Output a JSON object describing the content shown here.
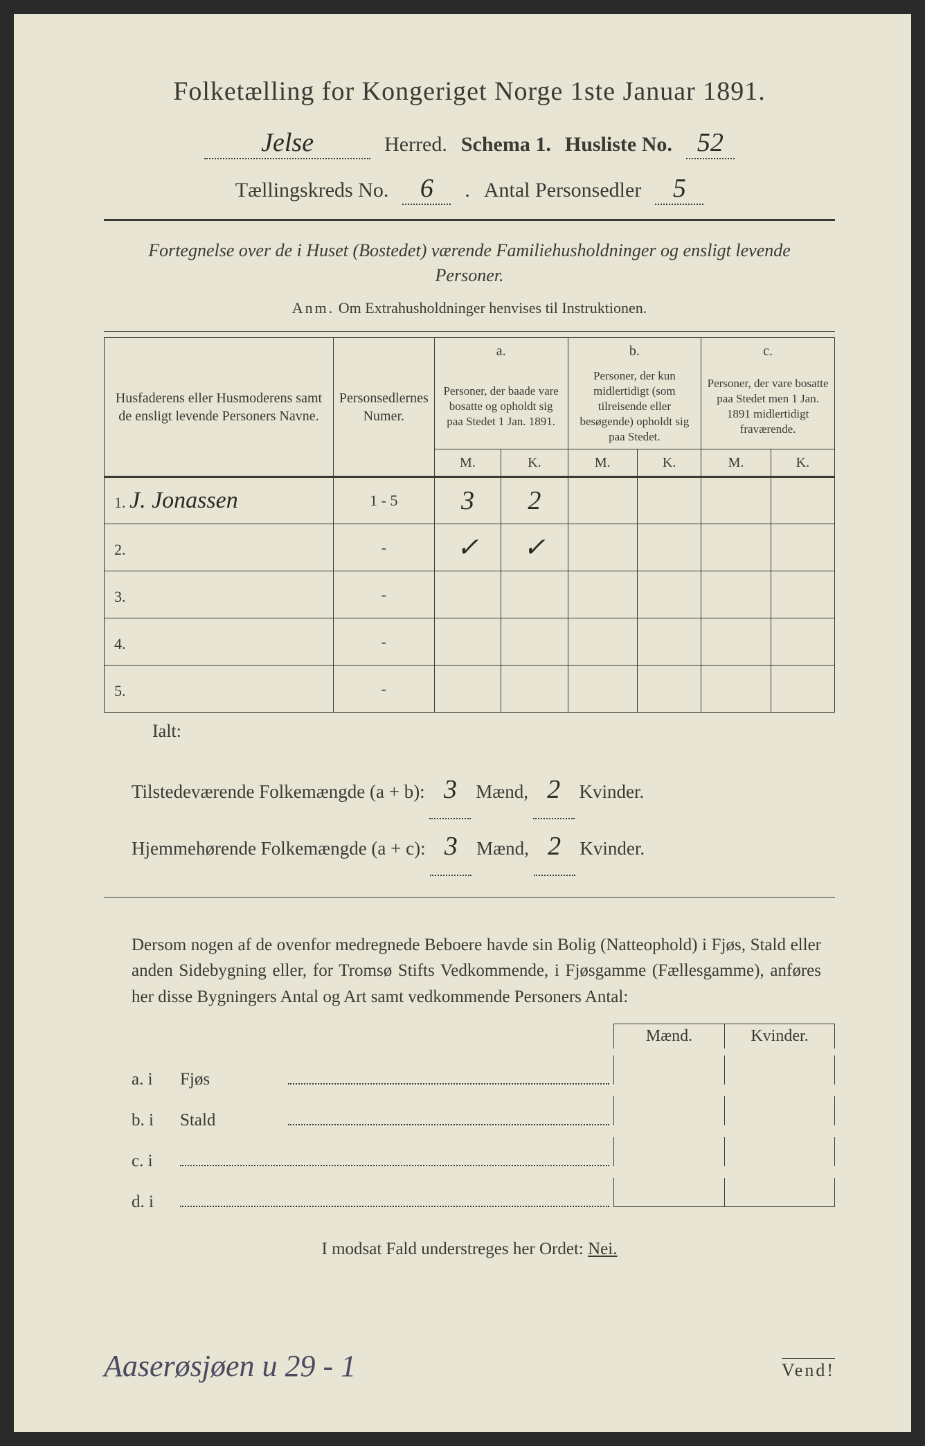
{
  "title": "Folketælling for Kongeriget Norge 1ste Januar 1891.",
  "header": {
    "herred_value": "Jelse",
    "herred_label": "Herred.",
    "schema_label": "Schema 1.",
    "husliste_label": "Husliste No.",
    "husliste_value": "52",
    "kreds_label": "Tællingskreds No.",
    "kreds_value": "6",
    "antal_label": "Antal Personsedler",
    "antal_value": "5"
  },
  "subtitle": "Fortegnelse over de i Huset (Bostedet) værende Familiehusholdninger og ensligt levende Personer.",
  "anm_label": "Anm.",
  "anm_text": "Om Extrahusholdninger henvises til Instruktionen.",
  "columns": {
    "name": "Husfaderens eller Husmoderens samt de ensligt levende Personers Navne.",
    "num": "Personsedlernes Numer.",
    "a_top": "a.",
    "a": "Personer, der baade vare bosatte og opholdt sig paa Stedet 1 Jan. 1891.",
    "b_top": "b.",
    "b": "Personer, der kun midlertidigt (som tilreisende eller besøgende) opholdt sig paa Stedet.",
    "c_top": "c.",
    "c": "Personer, der vare bosatte paa Stedet men 1 Jan. 1891 midlertidigt fraværende.",
    "m": "M.",
    "k": "K."
  },
  "rows": [
    {
      "n": "1.",
      "name": "J. Jonassen",
      "num": "1 - 5",
      "am": "3",
      "ak": "2",
      "bm": "",
      "bk": "",
      "cm": "",
      "ck": ""
    },
    {
      "n": "2.",
      "name": "",
      "num": "-",
      "am": "✓",
      "ak": "✓",
      "bm": "",
      "bk": "",
      "cm": "",
      "ck": ""
    },
    {
      "n": "3.",
      "name": "",
      "num": "-",
      "am": "",
      "ak": "",
      "bm": "",
      "bk": "",
      "cm": "",
      "ck": ""
    },
    {
      "n": "4.",
      "name": "",
      "num": "-",
      "am": "",
      "ak": "",
      "bm": "",
      "bk": "",
      "cm": "",
      "ck": ""
    },
    {
      "n": "5.",
      "name": "",
      "num": "-",
      "am": "",
      "ak": "",
      "bm": "",
      "bk": "",
      "cm": "",
      "ck": ""
    }
  ],
  "ialt": "Ialt:",
  "summary": {
    "line1_label": "Tilstedeværende Folkemængde (a + b):",
    "line1_m": "3",
    "line1_k": "2",
    "line2_label": "Hjemmehørende Folkemængde (a + c):",
    "line2_m": "3",
    "line2_k": "2",
    "maend": "Mænd,",
    "kvinder": "Kvinder."
  },
  "paragraph": "Dersom nogen af de ovenfor medregnede Beboere havde sin Bolig (Natteophold) i Fjøs, Stald eller anden Sidebygning eller, for Tromsø Stifts Vedkommende, i Fjøsgamme (Fællesgamme), anføres her disse Bygningers Antal og Art samt vedkommende Personers Antal:",
  "buildings": {
    "mh": "Mænd.",
    "kh": "Kvinder.",
    "a": "a.  i",
    "a_name": "Fjøs",
    "b": "b.  i",
    "b_name": "Stald",
    "c": "c.  i",
    "d": "d.  i"
  },
  "nei_text": "I modsat Fald understreges her Ordet:",
  "nei": "Nei.",
  "footer_hand": "Aaserøsjøen u 29 - 1",
  "vend": "Vend!"
}
